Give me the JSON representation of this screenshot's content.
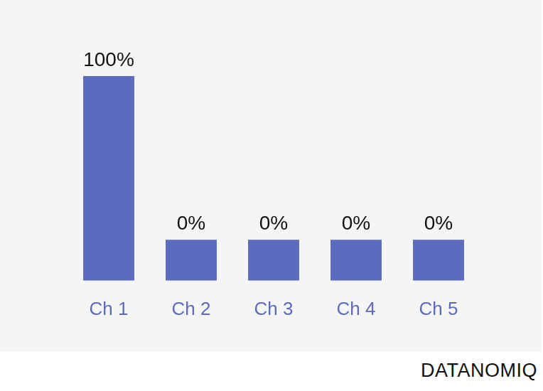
{
  "chart_data": {
    "type": "bar",
    "categories": [
      "Ch 1",
      "Ch 2",
      "Ch 3",
      "Ch 4",
      "Ch 5"
    ],
    "values": [
      100,
      0,
      0,
      0,
      0
    ],
    "value_labels": [
      "100%",
      "0%",
      "0%",
      "0%",
      "0%"
    ],
    "data_labels": true,
    "color": "#5c6bc0",
    "ylim": [
      -25,
      100
    ],
    "tick_labels": "x",
    "grid": false,
    "annotation": "DATANOMIQ"
  }
}
